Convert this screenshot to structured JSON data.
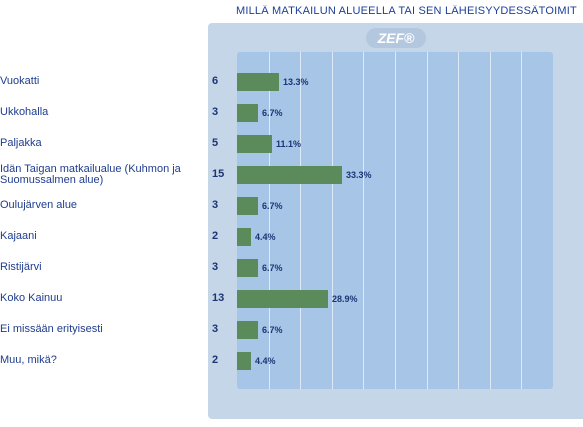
{
  "title": "MILLÄ MATKAILUN ALUEELLA TAI SEN LÄHEISYYDESSÄTOIMIT",
  "logo": "ZEF®",
  "colors": {
    "bar": "#5b8a5b",
    "plot": "#a7c5e6",
    "panel": "#c5d6e8",
    "text": "#1f3d8e"
  },
  "chart_data": {
    "type": "bar",
    "orientation": "horizontal",
    "title": "MILLÄ MATKAILUN ALUEELLA TAI SEN LÄHEISYYDESSÄTOIMIT",
    "categories": [
      "Vuokatti",
      "Ukkohalla",
      "Paljakka",
      "Idän Taigan matkailualue (Kuhmon ja Suomussalmen alue)",
      "Oulujärven alue",
      "Kajaani",
      "Ristijärvi",
      "Koko Kainuu",
      "Ei missään erityisesti",
      "Muu, mikä?"
    ],
    "counts": [
      6,
      3,
      5,
      15,
      3,
      2,
      3,
      13,
      3,
      2
    ],
    "values": [
      13.3,
      6.7,
      11.1,
      33.3,
      6.7,
      4.4,
      6.7,
      28.9,
      6.7,
      4.4
    ],
    "value_labels": [
      "13.3%",
      "6.7%",
      "11.1%",
      "33.3%",
      "6.7%",
      "4.4%",
      "6.7%",
      "28.9%",
      "6.7%",
      "4.4%"
    ],
    "xlim": [
      0,
      100
    ],
    "grid": true
  }
}
